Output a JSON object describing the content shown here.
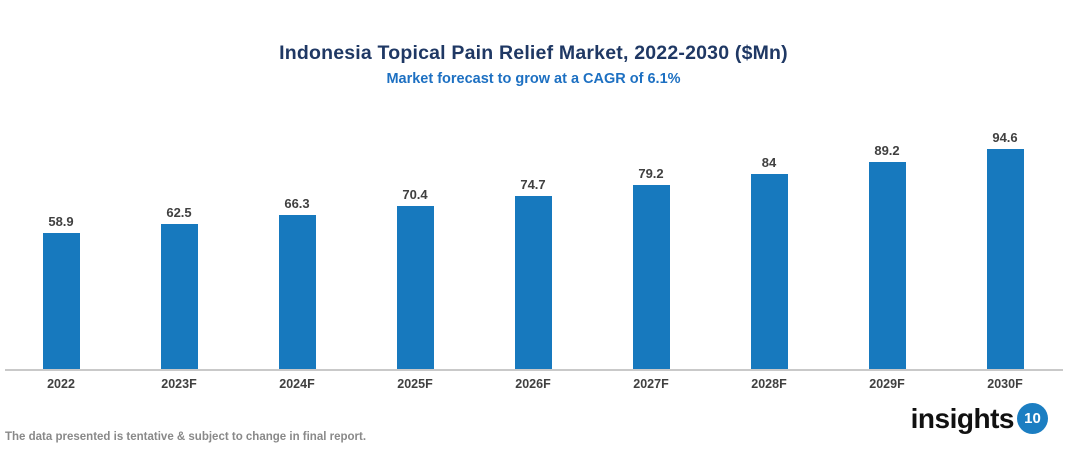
{
  "header": {
    "title": "Indonesia Topical Pain Relief Market, 2022-2030 ($Mn)",
    "subtitle": "Market forecast to grow at a CAGR of 6.1%",
    "title_color": "#1f3864",
    "subtitle_color": "#1d70c2"
  },
  "chart_data": {
    "type": "bar",
    "title": "Indonesia Topical Pain Relief Market, 2022-2030 ($Mn)",
    "subtitle": "Market forecast to grow at a CAGR of 6.1%",
    "categories": [
      "2022",
      "2023F",
      "2024F",
      "2025F",
      "2026F",
      "2027F",
      "2028F",
      "2029F",
      "2030F"
    ],
    "values": [
      58.9,
      62.5,
      66.3,
      70.4,
      74.7,
      79.2,
      84,
      89.2,
      94.6
    ],
    "xlabel": "",
    "ylabel": "",
    "ylim": [
      0,
      100
    ],
    "grid": false,
    "legend_position": "none",
    "data_labels": "above-bars",
    "bar_color": "#1779be",
    "value_label_color": "#404040",
    "category_label_color": "#404040",
    "axis_line_color": "#c9c9c9"
  },
  "footer": {
    "note": "The data presented is tentative & subject to change in final report.",
    "note_color": "#898989"
  },
  "logo": {
    "text": "insights",
    "badge": "10",
    "badge_color": "#1b7ec2",
    "text_color": "#111111"
  }
}
